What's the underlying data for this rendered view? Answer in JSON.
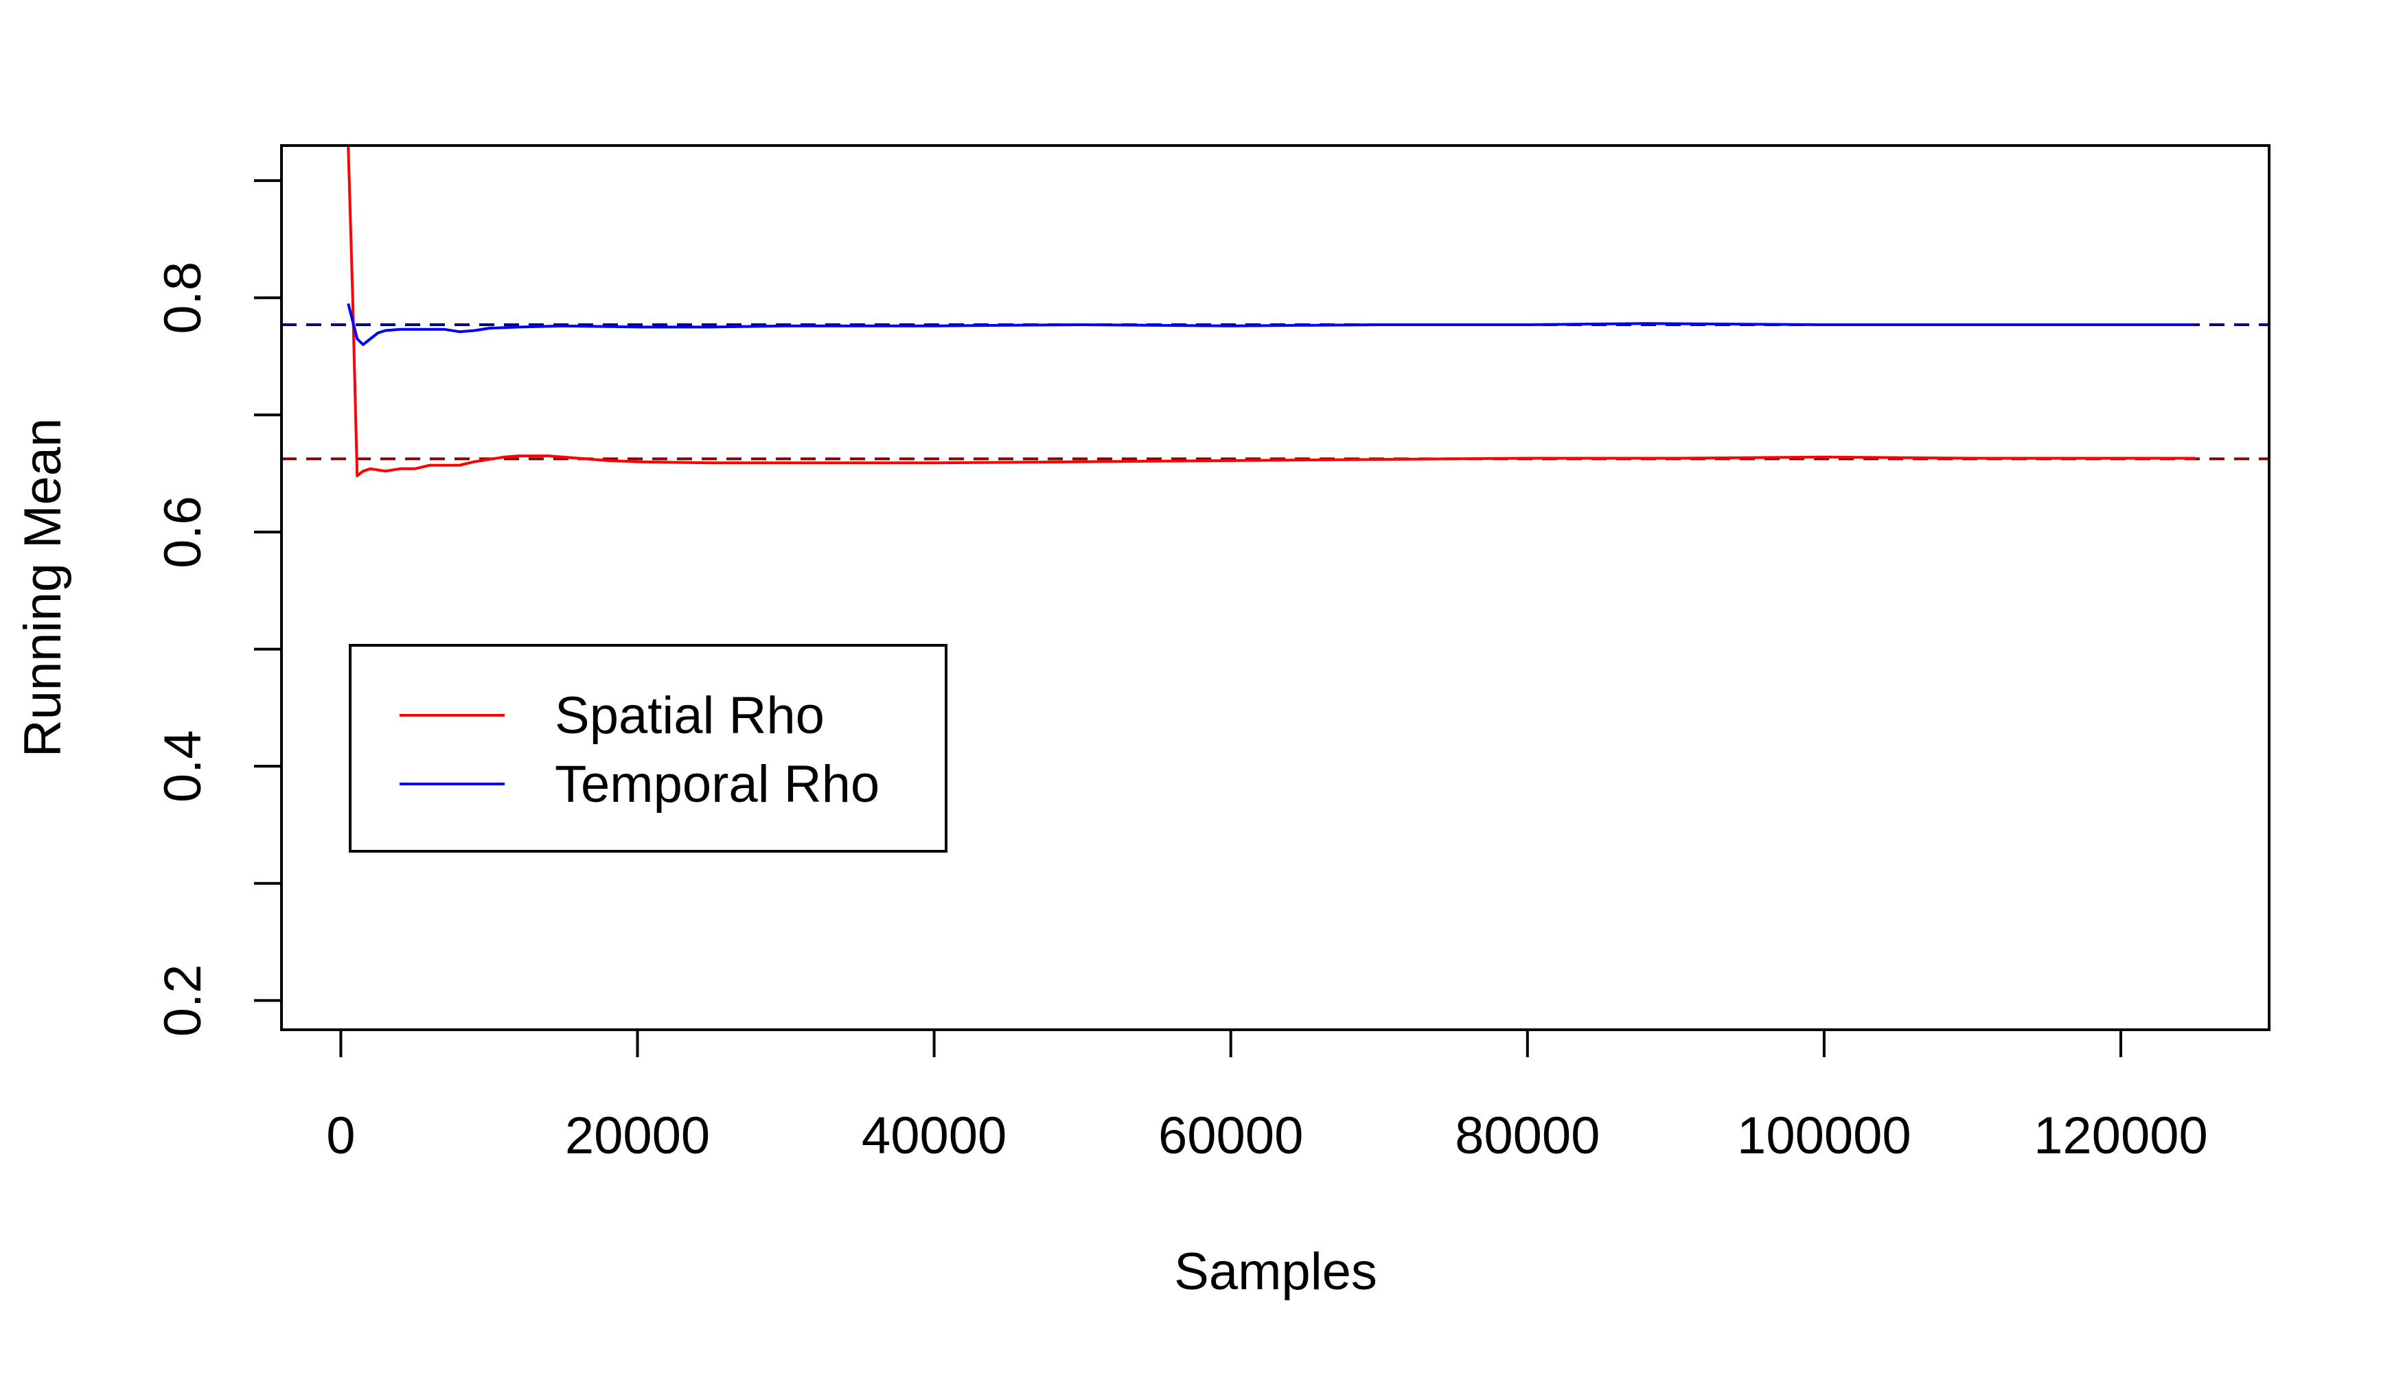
{
  "chart_data": {
    "type": "line",
    "title": "",
    "xlabel": "Samples",
    "ylabel": "Running Mean",
    "xlim": [
      -4000,
      130000
    ],
    "ylim": [
      0.175,
      0.93
    ],
    "x_ticks": [
      0,
      20000,
      40000,
      60000,
      80000,
      100000,
      120000
    ],
    "x_tick_labels": [
      "0",
      "20000",
      "40000",
      "60000",
      "80000",
      "100000",
      "120000"
    ],
    "y_ticks": [
      0.2,
      0.3,
      0.4,
      0.5,
      0.6,
      0.7,
      0.8,
      0.9
    ],
    "y_tick_labels": [
      "0.2",
      "",
      "0.4",
      "",
      "0.6",
      "",
      "0.8",
      ""
    ],
    "grid": false,
    "legend_position": "left",
    "series": [
      {
        "name": "Spatial Rho",
        "color": "#ff0000",
        "x": [
          500,
          800,
          1100,
          1500,
          2000,
          3000,
          4000,
          5000,
          6000,
          7000,
          8000,
          9000,
          10000,
          11000,
          12000,
          13000,
          14000,
          16000,
          18000,
          20000,
          25000,
          30000,
          40000,
          50000,
          60000,
          70000,
          80000,
          90000,
          100000,
          110000,
          120000,
          125000
        ],
        "y": [
          0.93,
          0.8,
          0.648,
          0.652,
          0.654,
          0.652,
          0.654,
          0.654,
          0.657,
          0.657,
          0.657,
          0.66,
          0.662,
          0.664,
          0.665,
          0.665,
          0.665,
          0.663,
          0.661,
          0.66,
          0.659,
          0.659,
          0.659,
          0.66,
          0.661,
          0.662,
          0.663,
          0.663,
          0.664,
          0.663,
          0.663,
          0.663
        ]
      },
      {
        "name": "Temporal Rho",
        "color": "#0000ff",
        "x": [
          500,
          800,
          1100,
          1500,
          2000,
          2500,
          3000,
          4000,
          5000,
          6000,
          7000,
          8000,
          9000,
          10000,
          12000,
          15000,
          20000,
          25000,
          30000,
          40000,
          50000,
          60000,
          70000,
          80000,
          88000,
          100000,
          110000,
          120000,
          125000
        ],
        "y": [
          0.795,
          0.78,
          0.765,
          0.76,
          0.765,
          0.77,
          0.772,
          0.773,
          0.773,
          0.773,
          0.773,
          0.771,
          0.772,
          0.774,
          0.775,
          0.776,
          0.775,
          0.775,
          0.776,
          0.776,
          0.777,
          0.776,
          0.777,
          0.777,
          0.778,
          0.777,
          0.777,
          0.777,
          0.777
        ]
      }
    ],
    "reference_lines": [
      {
        "y": 0.777,
        "color": "#00008b",
        "style": "dashed"
      },
      {
        "y": 0.6625,
        "color": "#8b0000",
        "style": "dashed"
      }
    ]
  },
  "legend": {
    "items": [
      {
        "label": "Spatial Rho",
        "color": "#ff0000"
      },
      {
        "label": "Temporal Rho",
        "color": "#0000ff"
      }
    ]
  }
}
